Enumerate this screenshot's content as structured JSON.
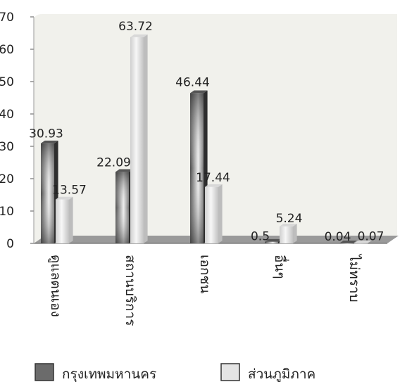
{
  "chart_data": {
    "type": "bar",
    "title": "",
    "xlabel": "",
    "ylabel": "",
    "ylim": [
      0,
      70
    ],
    "yticks": [
      0,
      10,
      20,
      30,
      40,
      50,
      60,
      70
    ],
    "grid": false,
    "legend_position": "bottom",
    "categories": [
      "ดูแลตนเอง",
      "สถานบริการ",
      "เอกชน",
      "อื่นๆ",
      "ไม่ทราบ"
    ],
    "series": [
      {
        "name": "กรุงเทพมหานคร",
        "values": [
          30.93,
          22.09,
          46.44,
          0.5,
          0.04
        ],
        "labels": [
          "30.93",
          "22.09",
          "46.44",
          "0.5",
          "0.04"
        ],
        "color": "#6b6b6b"
      },
      {
        "name": "ส่วนภูมิภาค",
        "values": [
          13.57,
          63.72,
          17.44,
          5.24,
          0.07
        ],
        "labels": [
          "13.57",
          "63.72",
          "17.44",
          "5.24",
          "0.07"
        ],
        "color": "#e4e4e4"
      }
    ]
  },
  "colors": {
    "plot_bg": "#f1f1ec",
    "floor": "#9a9a9a",
    "dark_bar": "#6b6b6b",
    "light_bar": "#e4e4e4"
  }
}
